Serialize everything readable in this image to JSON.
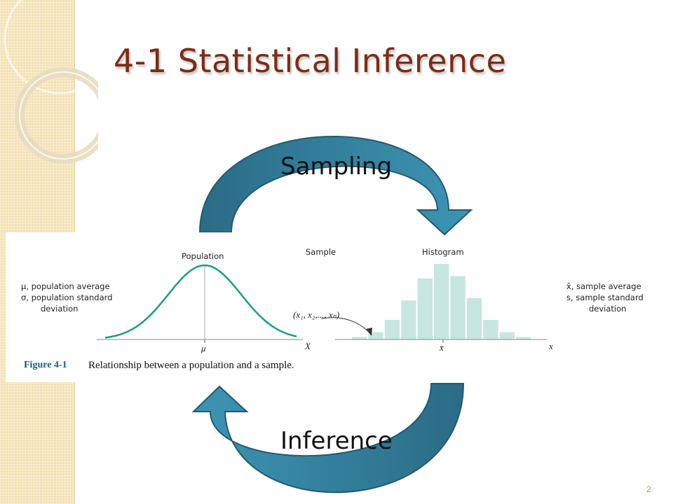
{
  "slide": {
    "title": "4-1 Statistical Inference",
    "page_number": "2"
  },
  "arrows": {
    "top_label": "Sampling",
    "bottom_label": "Inference",
    "color": "#2f7f9b"
  },
  "figure": {
    "population_heading": "Population",
    "sample_heading": "Sample",
    "histogram_heading": "Histogram",
    "population_params": [
      "μ, population average",
      "σ, population standard",
      "deviation"
    ],
    "sample_stats": [
      "x̄, sample average",
      "s, sample standard",
      "deviation"
    ],
    "sample_notation": "(x₁, x₂,..., xₙ)",
    "population_axis_label": "X",
    "mean_tick_label": "μ",
    "sample_mean_tick_label": "x̄",
    "histogram_axis_label": "x",
    "curve_color": "#1a9e83",
    "bar_color": "#c7e6df",
    "caption_label": "Figure 4-1",
    "caption_text": "Relationship between a population and a sample.",
    "histogram_bars": [
      1,
      3,
      8,
      16,
      25,
      31,
      26,
      17,
      8,
      3,
      1
    ]
  }
}
